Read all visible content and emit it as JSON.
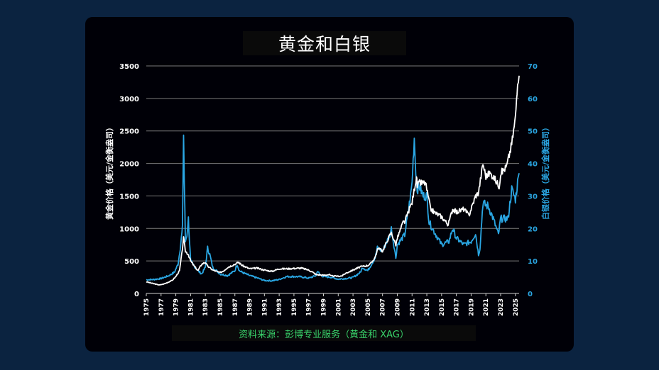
{
  "chart_data": {
    "type": "line",
    "title": "黄金和白银",
    "source": "资料来源：彭博专业服务（黄金和 XAG）",
    "ylabel_left": "黄金价格（美元/金衡盎司）",
    "ylabel_right": "白银价格（美元/金衡盎司）",
    "ylim_left": [
      0,
      3500
    ],
    "ylim_right": [
      0,
      70
    ],
    "yticks_left": [
      0,
      500,
      1000,
      1500,
      2000,
      2500,
      3000,
      3500
    ],
    "yticks_right": [
      0,
      10,
      20,
      30,
      40,
      50,
      60,
      70
    ],
    "xlim": [
      1975,
      2025.5
    ],
    "xticks": [
      "1975",
      "1977",
      "1979",
      "1981",
      "1983",
      "1985",
      "1987",
      "1989",
      "1991",
      "1993",
      "1995",
      "1997",
      "1999",
      "2001",
      "2003",
      "2005",
      "2007",
      "2009",
      "2011",
      "2013",
      "2015",
      "2017",
      "2019",
      "2021",
      "2023",
      "2025"
    ],
    "grid": true,
    "colors": {
      "gold": "#ffffff",
      "silver": "#2aa6e3",
      "grid": "#7a7a7a",
      "axis_text": "#ffffff",
      "right_axis_text": "#2aa6e3",
      "source_text": "#39d36b"
    },
    "series": [
      {
        "axis": "left",
        "x": [
          1975,
          1976,
          1976.8,
          1977.5,
          1978.5,
          1979,
          1979.5,
          1979.8,
          1980.05,
          1980.3,
          1980.7,
          1981,
          1981.5,
          1982,
          1982.5,
          1983,
          1983.3,
          1984,
          1985,
          1985.5,
          1986,
          1987,
          1987.5,
          1988,
          1989,
          1990,
          1991,
          1992,
          1993,
          1994,
          1995,
          1996,
          1997,
          1997.5,
          1998,
          1999,
          1999.8,
          2000,
          2001,
          2001.5,
          2002,
          2003,
          2004,
          2005,
          2005.5,
          2006,
          2006.4,
          2007,
          2008,
          2008.2,
          2008.8,
          2009,
          2009.8,
          2010,
          2010.8,
          2011,
          2011.6,
          2011.7,
          2012,
          2012.8,
          2013,
          2013.5,
          2014,
          2015,
          2015.9,
          2016.5,
          2017,
          2018,
          2018.7,
          2019,
          2019.6,
          2020,
          2020.6,
          2021,
          2021.5,
          2022,
          2022.8,
          2023,
          2023.8,
          2024,
          2024.5,
          2025,
          2025.3,
          2025.5
        ],
        "y": [
          180,
          150,
          130,
          150,
          200,
          260,
          350,
          600,
          850,
          650,
          600,
          500,
          420,
          350,
          450,
          480,
          420,
          360,
          320,
          350,
          400,
          450,
          480,
          430,
          380,
          390,
          360,
          340,
          380,
          380,
          385,
          390,
          360,
          330,
          290,
          280,
          290,
          270,
          265,
          270,
          310,
          360,
          410,
          430,
          470,
          560,
          700,
          650,
          900,
          930,
          750,
          850,
          1100,
          1100,
          1350,
          1400,
          1800,
          1650,
          1700,
          1700,
          1600,
          1300,
          1250,
          1180,
          1060,
          1300,
          1250,
          1300,
          1200,
          1300,
          1500,
          1550,
          2000,
          1800,
          1850,
          1800,
          1650,
          1850,
          1950,
          2050,
          2300,
          2700,
          3300,
          3350
        ]
      },
      {
        "axis": "right",
        "x": [
          1975,
          1976,
          1977,
          1978,
          1978.8,
          1979.3,
          1979.6,
          1979.9,
          1980.05,
          1980.15,
          1980.3,
          1980.5,
          1980.7,
          1981,
          1981.3,
          1982,
          1982.5,
          1983,
          1983.3,
          1983.6,
          1984,
          1985,
          1986,
          1987,
          1987.3,
          1987.6,
          1988,
          1989,
          1990,
          1991,
          1992,
          1993,
          1994,
          1995,
          1996,
          1997,
          1998,
          1998.2,
          1998.5,
          1999,
          2000,
          2001,
          2002,
          2003,
          2004,
          2004.3,
          2005,
          2006,
          2006.3,
          2007,
          2008,
          2008.2,
          2008.8,
          2009,
          2010,
          2010.8,
          2011,
          2011.3,
          2011.5,
          2011.7,
          2012,
          2012.5,
          2013,
          2013.3,
          2014,
          2015,
          2016,
          2016.5,
          2017,
          2018,
          2019,
          2019.6,
          2020,
          2020.2,
          2020.6,
          2021,
          2021.3,
          2022,
          2022.7,
          2023,
          2024,
          2024.5,
          2025,
          2025.3,
          2025.5
        ],
        "y": [
          4.2,
          4.3,
          4.6,
          5.4,
          6.5,
          9,
          14,
          20,
          49,
          35,
          16,
          18,
          23,
          10,
          9,
          7,
          6,
          8,
          14,
          12,
          8,
          6,
          5.5,
          7,
          9,
          7,
          6.5,
          5.5,
          4.8,
          4,
          3.9,
          4.3,
          5.2,
          5.2,
          5.1,
          4.7,
          5.5,
          7,
          5.8,
          5.2,
          5,
          4.4,
          4.6,
          4.9,
          6.5,
          8,
          7,
          11,
          14,
          13,
          18,
          20,
          11,
          15,
          18,
          30,
          34,
          48,
          38,
          32,
          33,
          30,
          30,
          22,
          19,
          15,
          16,
          20,
          17,
          15,
          16,
          18.5,
          12,
          14,
          28,
          27,
          27,
          23,
          18,
          23,
          23,
          32,
          29,
          34,
          37
        ]
      }
    ]
  }
}
